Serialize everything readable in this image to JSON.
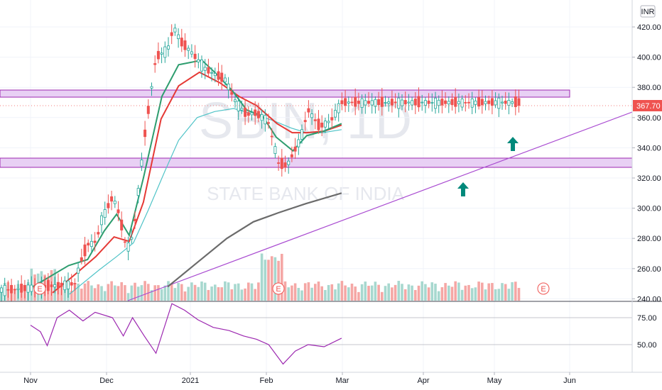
{
  "chart_data": {
    "type": "candlestick",
    "symbol_watermark": "SBIN, 1D",
    "name_watermark": "STATE BANK OF INDIA",
    "currency_badge": "INR",
    "last_price": "367.70",
    "x_ticks": [
      "Nov",
      "Dec",
      "2021",
      "Feb",
      "Mar",
      "Apr",
      "May",
      "Jun"
    ],
    "price_ticks": [
      "420.00",
      "400.00",
      "380.00",
      "360.00",
      "340.00",
      "320.00",
      "300.00",
      "280.00",
      "260.00",
      "240.00"
    ],
    "price_ylim": [
      240,
      430
    ],
    "rsi_ticks": [
      "75.00",
      "50.00"
    ],
    "earnings_markers": [
      "E",
      "E",
      "E"
    ],
    "colors": {
      "up": "#26a69a",
      "down": "#ef5350",
      "ema_short": "#2e9d6f",
      "ema_mid": "#e53935",
      "sma_50": "#4fc3c7",
      "sma_200": "#6b6b6b",
      "rsi": "#9c27b0",
      "zone_fill": "#e8d0f4",
      "zone_border": "#9c27b0",
      "trendline": "#a94bd1",
      "arrow": "#00897b",
      "last_price_badge": "#ef5350"
    },
    "series": [
      {
        "role": "price",
        "points": [
          [
            -0.26,
            246
          ],
          [
            0.59,
            250
          ],
          [
            0.64,
            262
          ],
          [
            0.75,
            276
          ],
          [
            0.84,
            277
          ],
          [
            0.88,
            281
          ],
          [
            0.93,
            292
          ],
          [
            0.98,
            297
          ],
          [
            1.07,
            307
          ],
          [
            1.11,
            303
          ],
          [
            1.15,
            296
          ],
          [
            1.17,
            291
          ],
          [
            1.24,
            272
          ],
          [
            1.32,
            283
          ],
          [
            1.46,
            350
          ],
          [
            1.59,
            400
          ],
          [
            1.73,
            405
          ],
          [
            1.8,
            420
          ],
          [
            1.89,
            410
          ],
          [
            2.0,
            404
          ],
          [
            2.2,
            392
          ],
          [
            2.46,
            385
          ],
          [
            2.6,
            370
          ],
          [
            2.74,
            362
          ],
          [
            2.85,
            363
          ],
          [
            3.02,
            358
          ],
          [
            3.16,
            330
          ],
          [
            3.27,
            328
          ],
          [
            3.45,
            346
          ],
          [
            3.55,
            365
          ],
          [
            3.7,
            354
          ],
          [
            3.85,
            358
          ],
          [
            3.99,
            370
          ]
        ]
      },
      {
        "role": "ema_short",
        "points": [
          [
            0.03,
            248
          ],
          [
            0.5,
            262
          ],
          [
            0.75,
            266
          ],
          [
            0.97,
            285
          ],
          [
            1.12,
            296
          ],
          [
            1.27,
            282
          ],
          [
            1.44,
            320
          ],
          [
            1.66,
            374
          ],
          [
            1.86,
            395
          ],
          [
            2.15,
            398
          ],
          [
            2.3,
            391
          ],
          [
            2.55,
            378
          ],
          [
            2.74,
            365
          ],
          [
            2.95,
            361
          ],
          [
            3.13,
            347
          ],
          [
            3.35,
            338
          ],
          [
            3.53,
            348
          ],
          [
            3.75,
            351
          ],
          [
            3.99,
            356
          ]
        ]
      },
      {
        "role": "ema_mid",
        "points": [
          [
            0.29,
            244
          ],
          [
            0.56,
            255
          ],
          [
            0.86,
            268
          ],
          [
            1.09,
            281
          ],
          [
            1.27,
            278
          ],
          [
            1.44,
            304
          ],
          [
            1.65,
            359
          ],
          [
            1.86,
            381
          ],
          [
            2.12,
            390
          ],
          [
            2.39,
            383
          ],
          [
            2.64,
            374
          ],
          [
            2.87,
            368
          ],
          [
            3.14,
            356
          ],
          [
            3.34,
            350
          ],
          [
            3.53,
            350
          ],
          [
            3.76,
            351
          ],
          [
            3.99,
            355
          ]
        ]
      },
      {
        "role": "sma_50",
        "points": [
          [
            0.51,
            243
          ],
          [
            0.9,
            259
          ],
          [
            1.12,
            268
          ],
          [
            1.32,
            277
          ],
          [
            1.5,
            299
          ],
          [
            1.7,
            325
          ],
          [
            1.86,
            345
          ],
          [
            2.09,
            360
          ],
          [
            2.32,
            364
          ],
          [
            2.57,
            366
          ],
          [
            2.85,
            362
          ],
          [
            3.09,
            358
          ],
          [
            3.33,
            353
          ],
          [
            3.53,
            350
          ],
          [
            3.74,
            350
          ],
          [
            3.99,
            352
          ]
        ]
      },
      {
        "role": "sma_200",
        "points": [
          [
            1.73,
            248
          ],
          [
            2.09,
            264
          ],
          [
            2.48,
            280
          ],
          [
            2.83,
            291
          ],
          [
            3.16,
            297
          ],
          [
            3.52,
            303
          ],
          [
            3.99,
            310
          ]
        ]
      },
      {
        "role": "rsi",
        "points": [
          [
            0.0,
            68
          ],
          [
            0.13,
            62
          ],
          [
            0.22,
            49
          ],
          [
            0.35,
            75
          ],
          [
            0.51,
            82
          ],
          [
            0.69,
            72
          ],
          [
            0.85,
            80
          ],
          [
            1.07,
            75
          ],
          [
            1.2,
            58
          ],
          [
            1.31,
            75
          ],
          [
            1.45,
            58
          ],
          [
            1.59,
            42
          ],
          [
            1.78,
            88
          ],
          [
            1.93,
            82
          ],
          [
            2.1,
            73
          ],
          [
            2.3,
            66
          ],
          [
            2.51,
            63
          ],
          [
            2.7,
            58
          ],
          [
            2.87,
            55
          ],
          [
            3.03,
            50
          ],
          [
            3.22,
            32
          ],
          [
            3.38,
            44
          ],
          [
            3.55,
            50
          ],
          [
            3.76,
            48
          ],
          [
            3.99,
            56
          ]
        ]
      }
    ],
    "annotations": [
      "support_zone_upper",
      "support_zone_lower",
      "rising_trendline",
      "buy_arrow_1",
      "buy_arrow_2"
    ]
  }
}
